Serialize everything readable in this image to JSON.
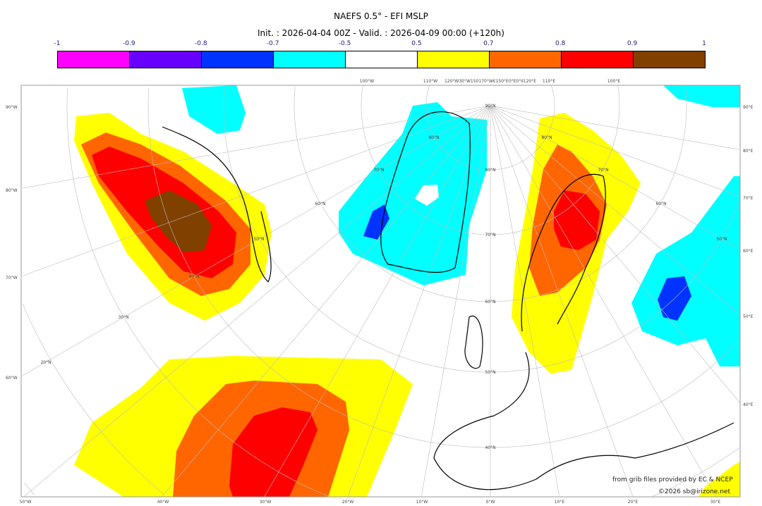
{
  "title": "NAEFS 0.5° - EFI MSLP",
  "subtitle": "Init. : 2026-04-04 00Z - Valid. : 2026-04-09 00:00 (+120h)",
  "colorbar": {
    "labels": [
      "-1",
      "-0.9",
      "-0.8",
      "-0.7",
      "-0.5",
      "0.5",
      "0.7",
      "0.8",
      "0.9",
      "1"
    ],
    "colors": [
      "#ff00ff",
      "#6600ff",
      "#0033ff",
      "#00ffff",
      "#ffffff",
      "#ffff00",
      "#ff6600",
      "#ff0000",
      "#804000"
    ]
  },
  "axes": {
    "left": [
      "90°W",
      "80°W",
      "70°W",
      "60°W"
    ],
    "right": [
      "90°E",
      "80°E",
      "70°E",
      "60°E",
      "50°E",
      "40°E"
    ],
    "bottom": [
      "50°W",
      "40°W",
      "30°W",
      "20°W",
      "10°W",
      "0°W",
      "10°E",
      "20°E",
      "30°E"
    ],
    "top": [
      "100°W",
      "110°W",
      "120°W30°W150170°W€150°E0°E0°II120°E",
      "110°E",
      "100°E"
    ],
    "lat_labels": [
      "90°N",
      "80°N",
      "70°N",
      "60°N",
      "50°N",
      "40°N",
      "30°N",
      "20°N",
      "80°N",
      "70°N",
      "60°N",
      "50°N",
      "40°N",
      "80°N",
      "70°N",
      "60°N",
      "50°N"
    ]
  },
  "credits": {
    "source": "from grib files provided by EC & NCEP",
    "copyright": "©2026 sb@irizone.net"
  }
}
